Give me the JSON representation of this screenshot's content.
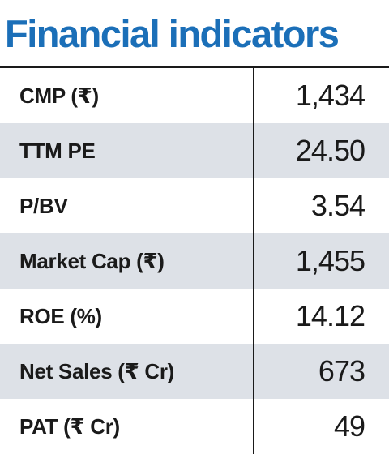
{
  "title": "Financial indicators",
  "rows": [
    {
      "label": "CMP (₹)",
      "value": "1,434"
    },
    {
      "label": "TTM PE",
      "value": "24.50"
    },
    {
      "label": "P/BV",
      "value": "3.54"
    },
    {
      "label": "Market Cap (₹)",
      "value": "1,455"
    },
    {
      "label": "ROE (%)",
      "value": "14.12"
    },
    {
      "label": "Net Sales (₹ Cr)",
      "value": "673"
    },
    {
      "label": "PAT (₹ Cr)",
      "value": "49"
    }
  ],
  "colors": {
    "title": "#1b6fb8",
    "shaded_row": "#dde1e7",
    "text": "#1a1a1a",
    "rule": "#1a1a1a"
  }
}
